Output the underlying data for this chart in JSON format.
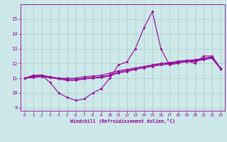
{
  "xlabel": "Windchill (Refroidissement éolien,°C)",
  "x_values": [
    0,
    1,
    2,
    3,
    4,
    5,
    6,
    7,
    8,
    9,
    10,
    11,
    12,
    13,
    14,
    15,
    16,
    17,
    18,
    19,
    20,
    21,
    22,
    23
  ],
  "line1": [
    11.0,
    11.2,
    11.2,
    10.7,
    10.0,
    9.7,
    9.5,
    9.6,
    10.0,
    10.3,
    11.0,
    11.9,
    12.1,
    13.0,
    14.4,
    15.5,
    13.0,
    11.9,
    12.0,
    12.2,
    12.0,
    12.5,
    12.5,
    11.7
  ],
  "line2": [
    11.0,
    11.15,
    11.2,
    11.1,
    11.0,
    11.0,
    11.0,
    11.1,
    11.15,
    11.2,
    11.35,
    11.5,
    11.6,
    11.7,
    11.8,
    11.9,
    12.0,
    12.05,
    12.15,
    12.2,
    12.25,
    12.35,
    12.45,
    11.65
  ],
  "line3": [
    11.0,
    11.1,
    11.15,
    11.05,
    10.95,
    10.85,
    10.85,
    10.95,
    11.0,
    11.05,
    11.15,
    11.35,
    11.45,
    11.6,
    11.7,
    11.8,
    11.9,
    11.95,
    12.05,
    12.1,
    12.15,
    12.25,
    12.35,
    11.65
  ],
  "line4": [
    11.0,
    11.05,
    11.1,
    11.05,
    11.0,
    10.92,
    10.92,
    11.0,
    11.05,
    11.1,
    11.22,
    11.42,
    11.52,
    11.63,
    11.73,
    11.85,
    11.95,
    12.0,
    12.1,
    12.15,
    12.2,
    12.3,
    12.4,
    11.65
  ],
  "line_color": "#990099",
  "bg_color": "#cce8e8",
  "grid_color": "#aacccc",
  "ylim": [
    8.8,
    16.0
  ],
  "yticks": [
    9,
    10,
    11,
    12,
    13,
    14,
    15
  ],
  "xlim": [
    -0.5,
    23.5
  ],
  "tick_labels": [
    "0",
    "1",
    "2",
    "3",
    "4",
    "5",
    "6",
    "7",
    "8",
    "9",
    "10",
    "11",
    "12",
    "13",
    "14",
    "15",
    "16",
    "17",
    "18",
    "19",
    "20",
    "21",
    "22",
    "23"
  ]
}
